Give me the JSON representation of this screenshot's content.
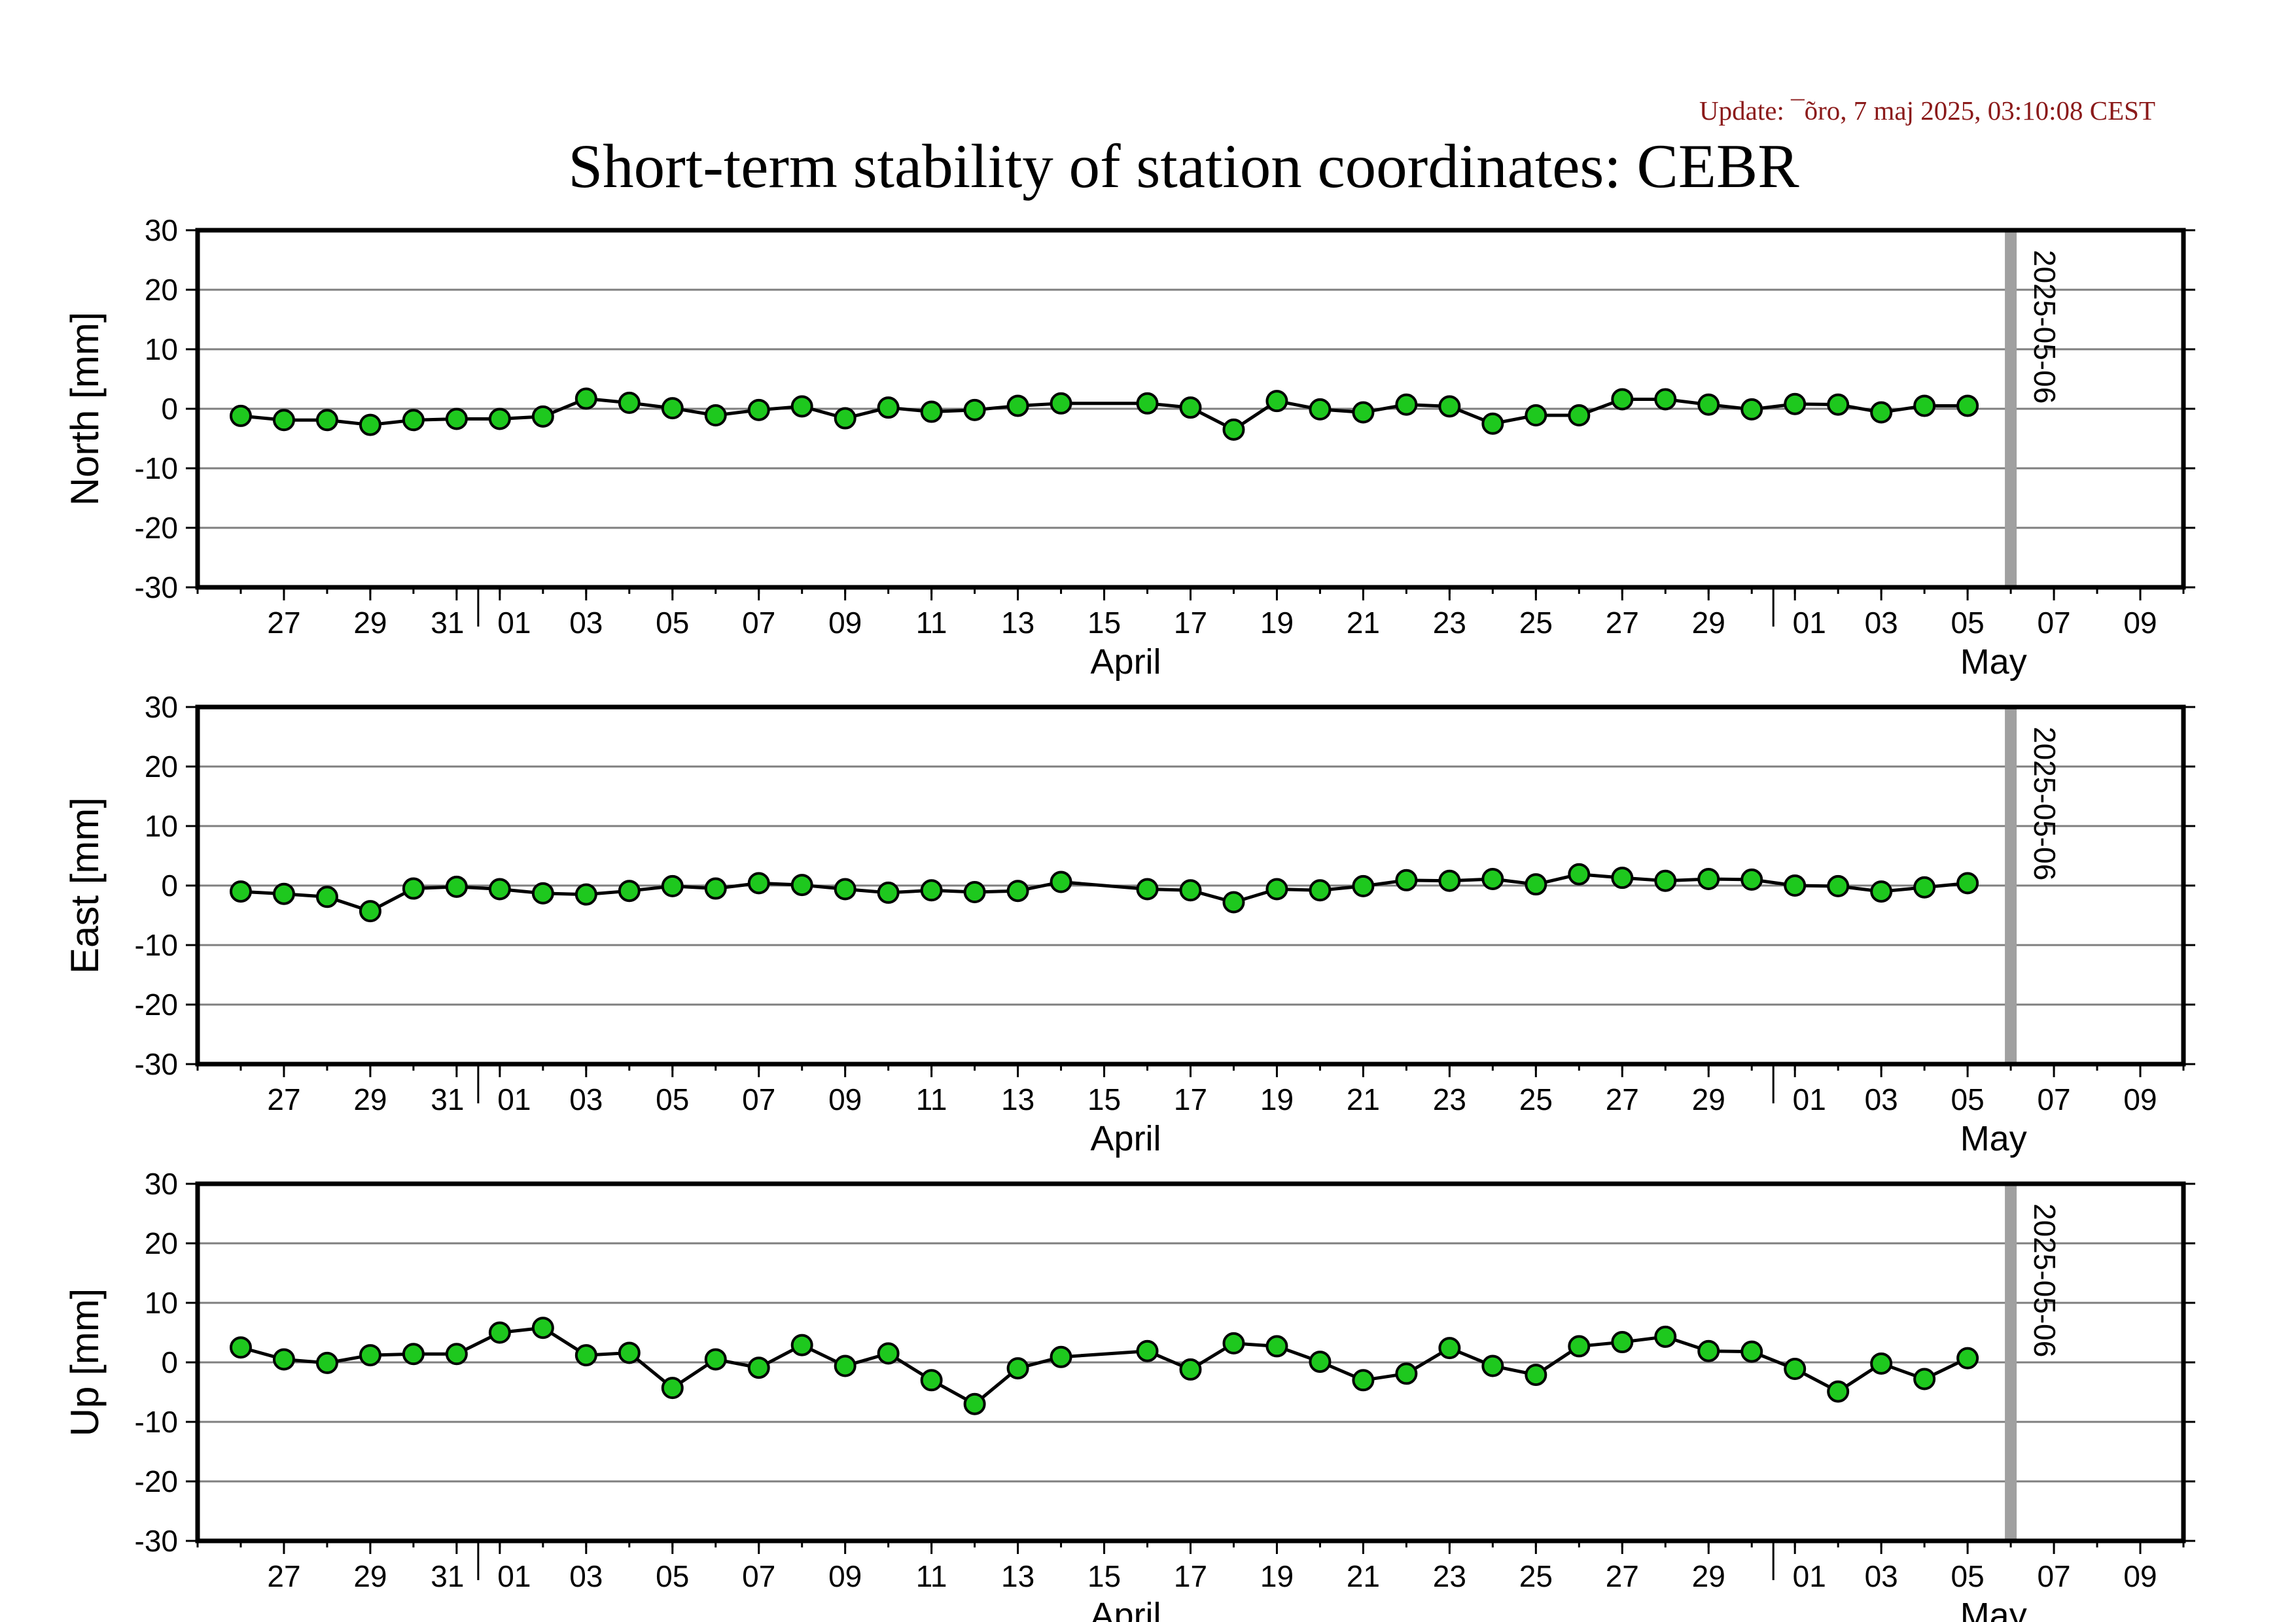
{
  "update_text": "Update: ¯õro, 7 maj 2025, 03:10:08 CEST",
  "title": "Short-term stability of station coordinates: CEBR",
  "colors": {
    "marker_fill": "#1ec81e",
    "marker_stroke": "#000000",
    "line": "#000000",
    "grid": "#7f7f7f",
    "marker_band": "#a0a0a0",
    "update_text": "#8b1a1a"
  },
  "chart_data": [
    {
      "type": "line",
      "ylabel": "North [mm]",
      "ylim": [
        -30,
        30
      ],
      "yticks": [
        30,
        20,
        10,
        0,
        -10,
        -20,
        -30
      ],
      "xlim": [
        "2025-03-25",
        "2025-05-10"
      ],
      "x_tick_labels": [
        "27",
        "29",
        "31",
        "01",
        "03",
        "05",
        "07",
        "09",
        "11",
        "13",
        "15",
        "17",
        "19",
        "21",
        "23",
        "25",
        "27",
        "29",
        "01",
        "03",
        "05",
        "07",
        "09"
      ],
      "month_labels": [
        "April",
        "May"
      ],
      "marker_date": "2025-05-06",
      "marker_label": "2025-05-06",
      "grid": true,
      "x": [
        "2025-03-26",
        "2025-03-27",
        "2025-03-28",
        "2025-03-29",
        "2025-03-30",
        "2025-03-31",
        "2025-04-01",
        "2025-04-02",
        "2025-04-03",
        "2025-04-04",
        "2025-04-05",
        "2025-04-06",
        "2025-04-07",
        "2025-04-08",
        "2025-04-09",
        "2025-04-10",
        "2025-04-11",
        "2025-04-12",
        "2025-04-13",
        "2025-04-14",
        "2025-04-16",
        "2025-04-17",
        "2025-04-18",
        "2025-04-19",
        "2025-04-20",
        "2025-04-21",
        "2025-04-22",
        "2025-04-23",
        "2025-04-24",
        "2025-04-25",
        "2025-04-26",
        "2025-04-27",
        "2025-04-28",
        "2025-04-29",
        "2025-04-30",
        "2025-05-01",
        "2025-05-02",
        "2025-05-03",
        "2025-05-04",
        "2025-05-05"
      ],
      "values": [
        -1.2,
        -1.9,
        -1.9,
        -2.7,
        -1.9,
        -1.7,
        -1.7,
        -1.3,
        1.7,
        1.0,
        0.1,
        -1.1,
        -0.2,
        0.4,
        -1.6,
        0.2,
        -0.5,
        -0.2,
        0.5,
        0.9,
        0.9,
        0.2,
        -3.5,
        1.3,
        -0.1,
        -0.6,
        0.7,
        0.4,
        -2.5,
        -1.1,
        -1.1,
        1.6,
        1.6,
        0.7,
        -0.1,
        0.8,
        0.7,
        -0.6,
        0.5,
        0.5
      ]
    },
    {
      "type": "line",
      "ylabel": "East [mm]",
      "ylim": [
        -30,
        30
      ],
      "yticks": [
        30,
        20,
        10,
        0,
        -10,
        -20,
        -30
      ],
      "xlim": [
        "2025-03-25",
        "2025-05-10"
      ],
      "x_tick_labels": [
        "27",
        "29",
        "31",
        "01",
        "03",
        "05",
        "07",
        "09",
        "11",
        "13",
        "15",
        "17",
        "19",
        "21",
        "23",
        "25",
        "27",
        "29",
        "01",
        "03",
        "05",
        "07",
        "09"
      ],
      "month_labels": [
        "April",
        "May"
      ],
      "marker_date": "2025-05-06",
      "marker_label": "2025-05-06",
      "grid": true,
      "x": [
        "2025-03-26",
        "2025-03-27",
        "2025-03-28",
        "2025-03-29",
        "2025-03-30",
        "2025-03-31",
        "2025-04-01",
        "2025-04-02",
        "2025-04-03",
        "2025-04-04",
        "2025-04-05",
        "2025-04-06",
        "2025-04-07",
        "2025-04-08",
        "2025-04-09",
        "2025-04-10",
        "2025-04-11",
        "2025-04-12",
        "2025-04-13",
        "2025-04-14",
        "2025-04-16",
        "2025-04-17",
        "2025-04-18",
        "2025-04-19",
        "2025-04-20",
        "2025-04-21",
        "2025-04-22",
        "2025-04-23",
        "2025-04-24",
        "2025-04-25",
        "2025-04-26",
        "2025-04-27",
        "2025-04-28",
        "2025-04-29",
        "2025-04-30",
        "2025-05-01",
        "2025-05-02",
        "2025-05-03",
        "2025-05-04",
        "2025-05-05"
      ],
      "values": [
        -1.0,
        -1.4,
        -1.9,
        -4.3,
        -0.5,
        -0.2,
        -0.6,
        -1.3,
        -1.5,
        -0.9,
        -0.1,
        -0.5,
        0.4,
        0.1,
        -0.6,
        -1.2,
        -0.8,
        -1.1,
        -0.9,
        0.6,
        -0.6,
        -0.8,
        -2.8,
        -0.6,
        -0.8,
        -0.1,
        0.9,
        0.8,
        1.1,
        0.2,
        1.9,
        1.3,
        0.8,
        1.1,
        1.0,
        0.0,
        -0.1,
        -1.0,
        -0.3,
        0.4
      ]
    },
    {
      "type": "line",
      "ylabel": "Up [mm]",
      "ylim": [
        -30,
        30
      ],
      "yticks": [
        30,
        20,
        10,
        0,
        -10,
        -20,
        -30
      ],
      "xlim": [
        "2025-03-25",
        "2025-05-10"
      ],
      "x_tick_labels": [
        "27",
        "29",
        "31",
        "01",
        "03",
        "05",
        "07",
        "09",
        "11",
        "13",
        "15",
        "17",
        "19",
        "21",
        "23",
        "25",
        "27",
        "29",
        "01",
        "03",
        "05",
        "07",
        "09"
      ],
      "month_labels": [
        "April",
        "May"
      ],
      "marker_date": "2025-05-06",
      "marker_label": "2025-05-06",
      "grid": true,
      "x": [
        "2025-03-26",
        "2025-03-27",
        "2025-03-28",
        "2025-03-29",
        "2025-03-30",
        "2025-03-31",
        "2025-04-01",
        "2025-04-02",
        "2025-04-03",
        "2025-04-04",
        "2025-04-05",
        "2025-04-06",
        "2025-04-07",
        "2025-04-08",
        "2025-04-09",
        "2025-04-10",
        "2025-04-11",
        "2025-04-12",
        "2025-04-13",
        "2025-04-14",
        "2025-04-16",
        "2025-04-17",
        "2025-04-18",
        "2025-04-19",
        "2025-04-20",
        "2025-04-21",
        "2025-04-22",
        "2025-04-23",
        "2025-04-24",
        "2025-04-25",
        "2025-04-26",
        "2025-04-27",
        "2025-04-28",
        "2025-04-29",
        "2025-04-30",
        "2025-05-01",
        "2025-05-02",
        "2025-05-03",
        "2025-05-04",
        "2025-05-05"
      ],
      "values": [
        2.5,
        0.5,
        -0.1,
        1.2,
        1.4,
        1.4,
        5.0,
        5.8,
        1.2,
        1.6,
        -4.3,
        0.5,
        -0.9,
        2.9,
        -0.6,
        1.5,
        -3.0,
        -7.0,
        -1.0,
        0.9,
        1.9,
        -1.2,
        3.2,
        2.7,
        0.1,
        -3.0,
        -1.9,
        2.4,
        -0.6,
        -2.1,
        2.7,
        3.4,
        4.3,
        1.9,
        1.8,
        -1.1,
        -4.9,
        -0.2,
        -2.8,
        0.7
      ]
    }
  ]
}
